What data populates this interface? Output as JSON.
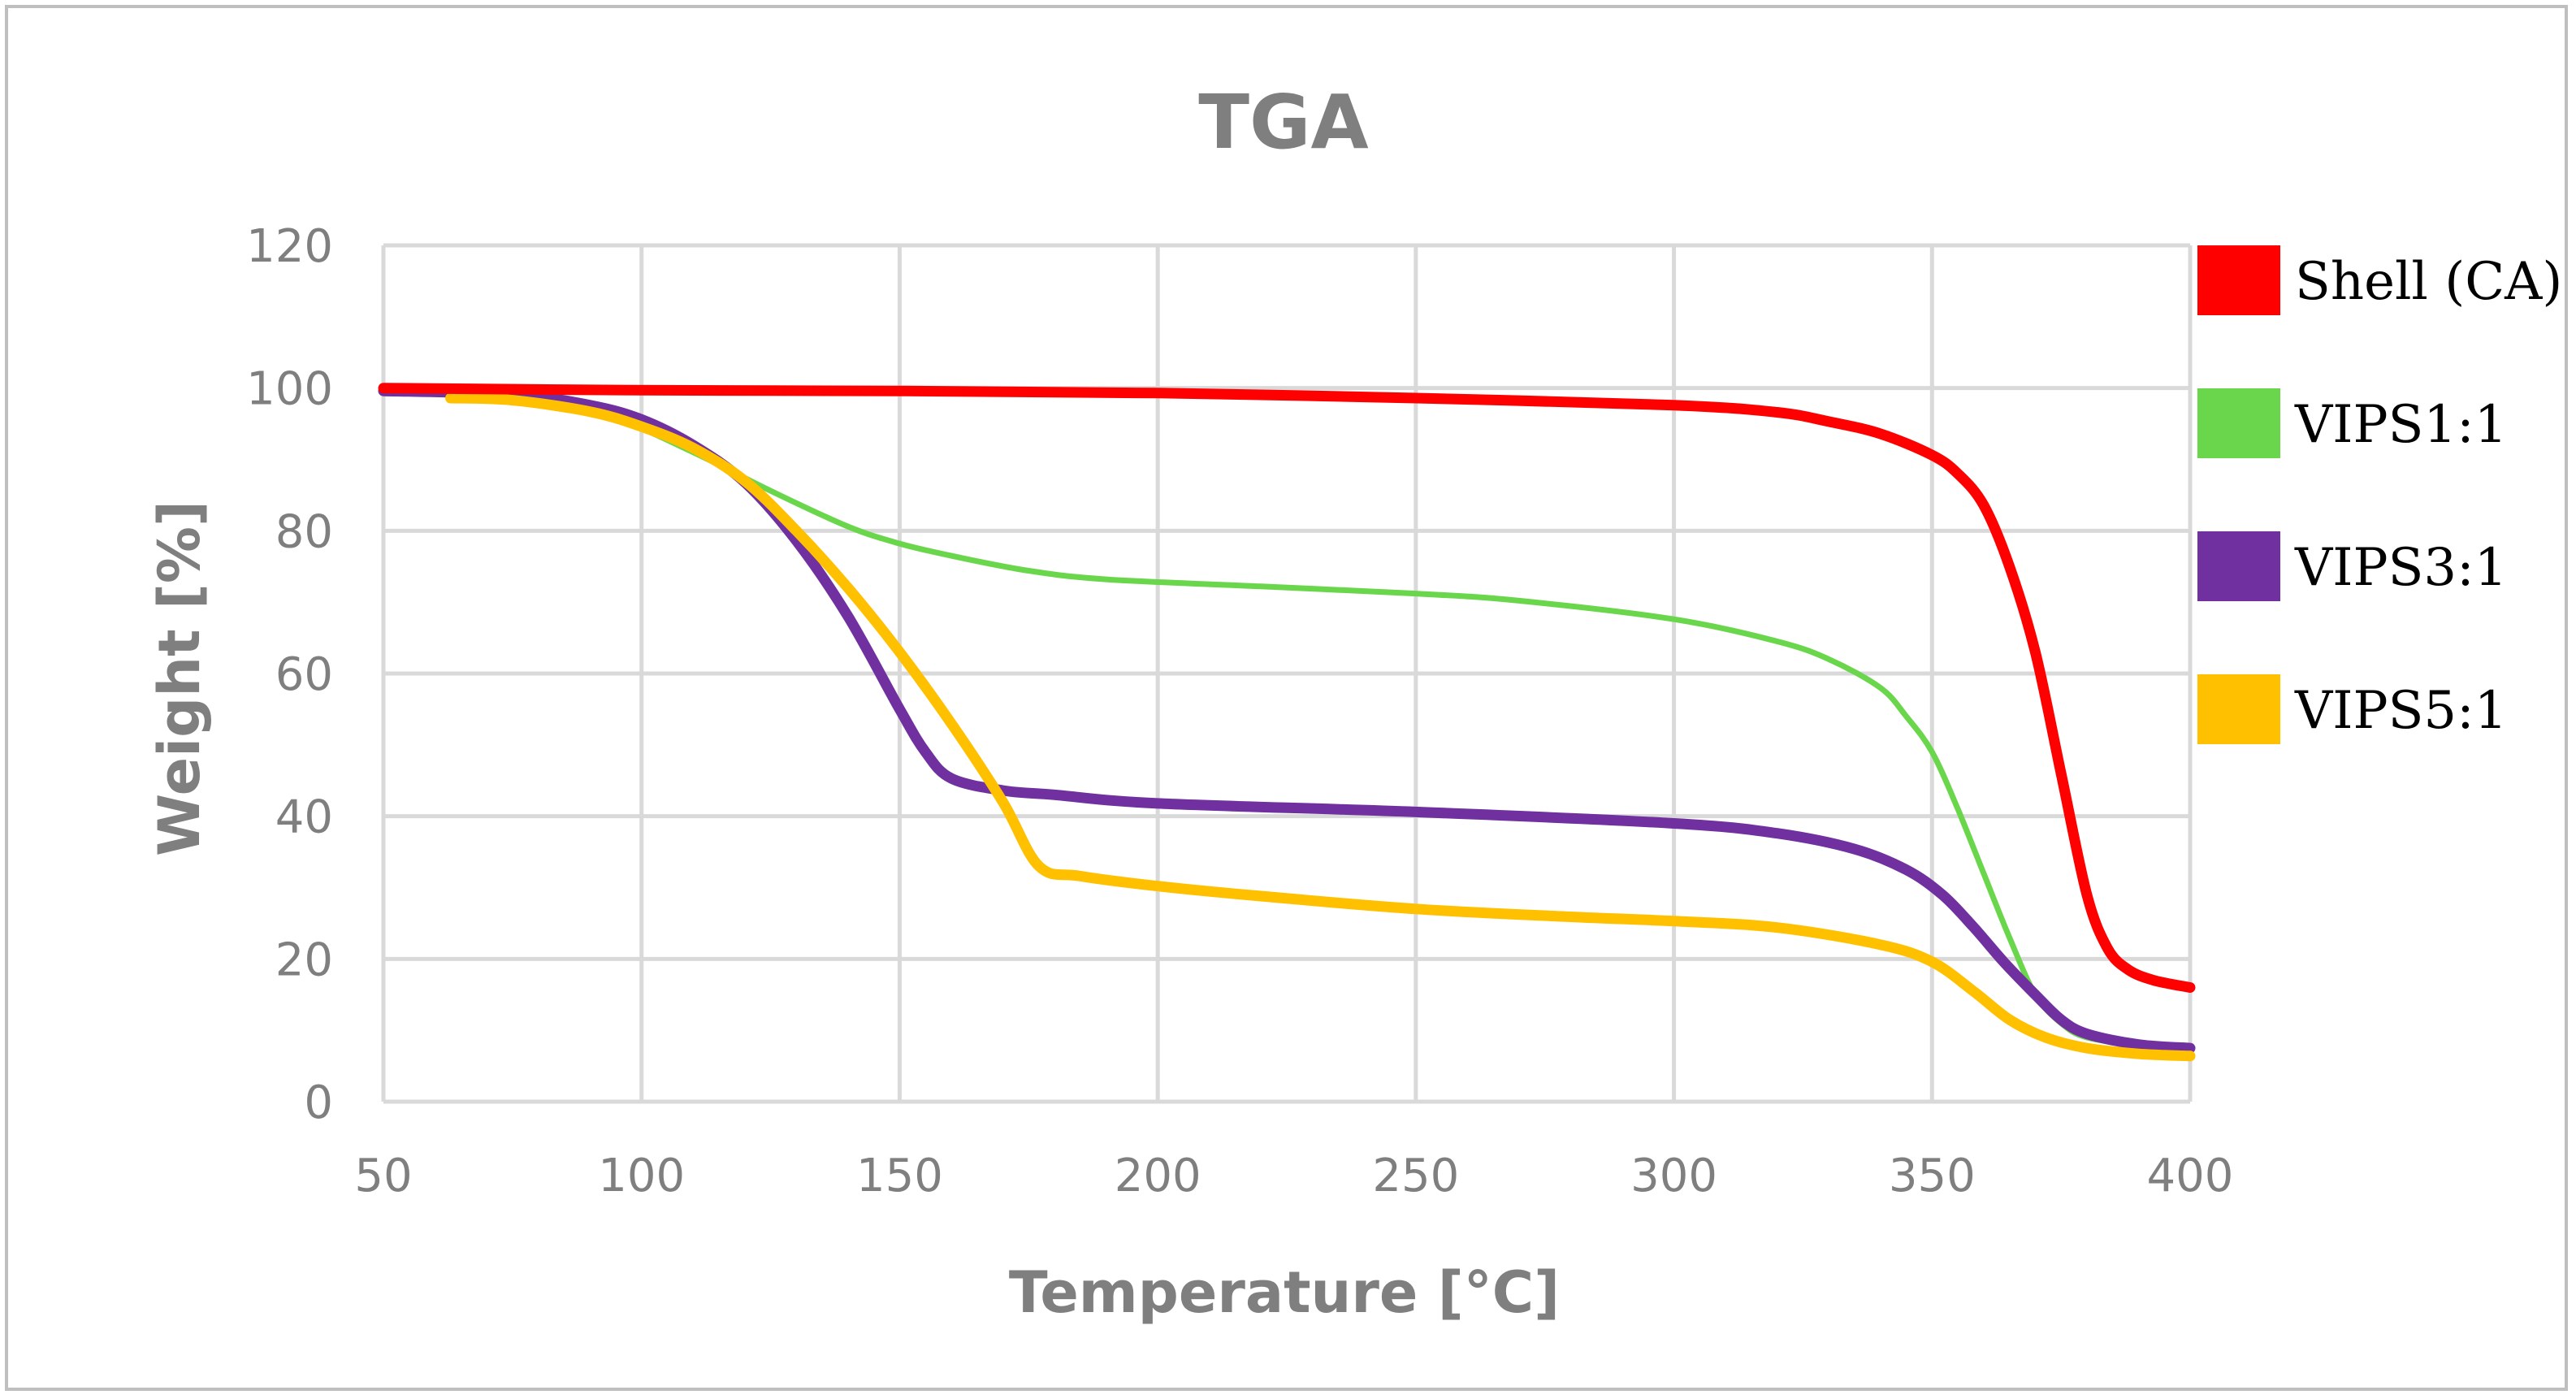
{
  "chart_data": {
    "type": "line",
    "title": "TGA",
    "xlabel": "Temperature [°C]",
    "ylabel": "Weight [%]",
    "xlim": [
      50,
      400
    ],
    "ylim": [
      0,
      120
    ],
    "xticks": [
      50,
      100,
      150,
      200,
      250,
      300,
      350,
      400
    ],
    "yticks": [
      0,
      20,
      40,
      60,
      80,
      100,
      120
    ],
    "grid": true,
    "legend_position": "right",
    "series": [
      {
        "name": "Shell (CA)",
        "color": "#ff0000",
        "points": [
          [
            50,
            100
          ],
          [
            100,
            99.7
          ],
          [
            150,
            99.6
          ],
          [
            200,
            99.3
          ],
          [
            250,
            98.6
          ],
          [
            300,
            97.6
          ],
          [
            320,
            96.6
          ],
          [
            330,
            95.3
          ],
          [
            340,
            93.6
          ],
          [
            350,
            90.6
          ],
          [
            355,
            88
          ],
          [
            360,
            83.6
          ],
          [
            365,
            75
          ],
          [
            370,
            63
          ],
          [
            375,
            46
          ],
          [
            380,
            29
          ],
          [
            384,
            21.5
          ],
          [
            388,
            18.5
          ],
          [
            393,
            17
          ],
          [
            400,
            16
          ]
        ]
      },
      {
        "name": "VIPS1:1",
        "color": "#6ad64b",
        "points": [
          [
            50,
            99.6
          ],
          [
            75,
            98.6
          ],
          [
            95,
            95.6
          ],
          [
            110,
            91
          ],
          [
            125,
            85.6
          ],
          [
            140,
            80.6
          ],
          [
            150,
            78.2
          ],
          [
            160,
            76.5
          ],
          [
            175,
            74.4
          ],
          [
            190,
            73.2
          ],
          [
            220,
            72.2
          ],
          [
            250,
            71.2
          ],
          [
            270,
            70.2
          ],
          [
            300,
            67.6
          ],
          [
            320,
            64.5
          ],
          [
            330,
            62
          ],
          [
            340,
            58
          ],
          [
            345,
            54
          ],
          [
            350,
            49
          ],
          [
            355,
            41
          ],
          [
            360,
            32
          ],
          [
            365,
            23
          ],
          [
            370,
            15
          ],
          [
            375,
            11
          ],
          [
            380,
            9
          ],
          [
            390,
            8
          ],
          [
            400,
            7.8
          ]
        ]
      },
      {
        "name": "VIPS3:1",
        "color": "#7030a0",
        "points": [
          [
            50,
            99.6
          ],
          [
            75,
            99.1
          ],
          [
            90,
            97.6
          ],
          [
            100,
            95.6
          ],
          [
            110,
            92
          ],
          [
            120,
            86.8
          ],
          [
            130,
            78.6
          ],
          [
            140,
            68
          ],
          [
            150,
            55
          ],
          [
            155,
            49
          ],
          [
            160,
            45.3
          ],
          [
            170,
            43.6
          ],
          [
            180,
            43
          ],
          [
            200,
            41.8
          ],
          [
            250,
            40.6
          ],
          [
            300,
            39
          ],
          [
            320,
            37.6
          ],
          [
            335,
            35.4
          ],
          [
            345,
            32.5
          ],
          [
            352,
            29
          ],
          [
            358,
            24.5
          ],
          [
            364,
            19.5
          ],
          [
            370,
            15
          ],
          [
            375,
            11.5
          ],
          [
            380,
            9.5
          ],
          [
            390,
            8
          ],
          [
            400,
            7.5
          ]
        ]
      },
      {
        "name": "VIPS5:1",
        "color": "#ffc000",
        "points": [
          [
            63,
            98.6
          ],
          [
            75,
            98.3
          ],
          [
            90,
            96.7
          ],
          [
            100,
            94.6
          ],
          [
            110,
            91.6
          ],
          [
            120,
            87
          ],
          [
            130,
            80
          ],
          [
            140,
            72
          ],
          [
            150,
            63
          ],
          [
            160,
            53
          ],
          [
            170,
            42
          ],
          [
            177,
            33
          ],
          [
            185,
            31.6
          ],
          [
            200,
            30.2
          ],
          [
            220,
            28.8
          ],
          [
            250,
            27
          ],
          [
            280,
            25.9
          ],
          [
            300,
            25.3
          ],
          [
            320,
            24.4
          ],
          [
            340,
            22
          ],
          [
            350,
            19.6
          ],
          [
            358,
            15.5
          ],
          [
            365,
            11.5
          ],
          [
            372,
            9
          ],
          [
            380,
            7.5
          ],
          [
            390,
            6.7
          ],
          [
            400,
            6.4
          ]
        ]
      }
    ]
  }
}
